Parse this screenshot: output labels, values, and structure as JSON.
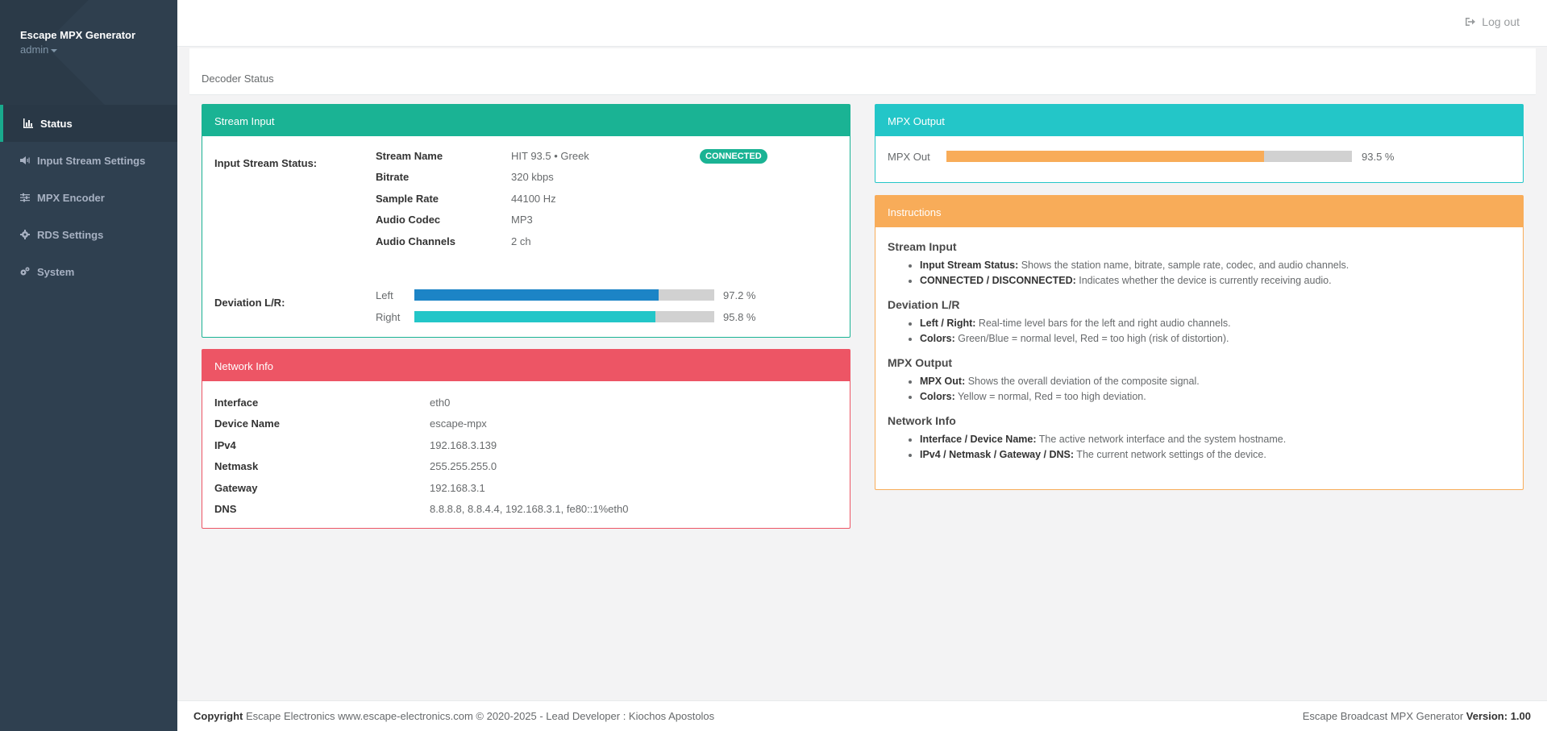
{
  "sidebar": {
    "app_name": "Escape MPX Generator",
    "user": "admin",
    "items": [
      {
        "label": "Status",
        "icon": "bar-chart-icon",
        "active": true
      },
      {
        "label": "Input Stream Settings",
        "icon": "volume-icon"
      },
      {
        "label": "MPX Encoder",
        "icon": "sliders-icon"
      },
      {
        "label": "RDS Settings",
        "icon": "gear-icon"
      },
      {
        "label": "System",
        "icon": "cogs-icon"
      }
    ]
  },
  "topbar": {
    "logout": "Log out"
  },
  "heading": {
    "breadcrumb": "Decoder Status"
  },
  "stream_input": {
    "title": "Stream Input",
    "status_label": "Input Stream Status:",
    "badge": "CONNECTED",
    "fields": [
      {
        "key": "Stream Name",
        "value": "HIT 93.5 • Greek"
      },
      {
        "key": "Bitrate",
        "value": "320 kbps"
      },
      {
        "key": "Sample Rate",
        "value": "44100 Hz"
      },
      {
        "key": "Audio Codec",
        "value": "MP3"
      },
      {
        "key": "Audio Channels",
        "value": "2 ch"
      }
    ],
    "deviation_label": "Deviation L/R:",
    "left": {
      "label": "Left",
      "percent": 97.2,
      "text": "97.2 %",
      "color": "#1c84c6"
    },
    "right": {
      "label": "Right",
      "percent": 95.8,
      "text": "95.8 %",
      "color": "#23c6c8"
    }
  },
  "mpx_output": {
    "title": "MPX Output",
    "label": "MPX Out",
    "percent": 93.5,
    "text": "93.5 %",
    "color": "#f8ac59"
  },
  "network": {
    "title": "Network Info",
    "rows": [
      {
        "key": "Interface",
        "value": "eth0"
      },
      {
        "key": "Device Name",
        "value": "escape-mpx"
      },
      {
        "key": "IPv4",
        "value": "192.168.3.139"
      },
      {
        "key": "Netmask",
        "value": "255.255.255.0"
      },
      {
        "key": "Gateway",
        "value": "192.168.3.1"
      },
      {
        "key": "DNS",
        "value": "8.8.8.8, 8.8.4.4, 192.168.3.1, fe80::1%eth0"
      }
    ]
  },
  "instructions": {
    "title": "Instructions",
    "sections": [
      {
        "heading": "Stream Input",
        "items": [
          {
            "bold": "Input Stream Status:",
            "text": " Shows the station name, bitrate, sample rate, codec, and audio channels."
          },
          {
            "bold": "CONNECTED / DISCONNECTED:",
            "text": " Indicates whether the device is currently receiving audio."
          }
        ]
      },
      {
        "heading": "Deviation L/R",
        "items": [
          {
            "bold": "Left / Right:",
            "text": " Real-time level bars for the left and right audio channels."
          },
          {
            "bold": "Colors:",
            "text": " Green/Blue = normal level, Red = too high (risk of distortion)."
          }
        ]
      },
      {
        "heading": "MPX Output",
        "items": [
          {
            "bold": "MPX Out:",
            "text": " Shows the overall deviation of the composite signal."
          },
          {
            "bold": "Colors:",
            "text": " Yellow = normal, Red = too high deviation."
          }
        ]
      },
      {
        "heading": "Network Info",
        "items": [
          {
            "bold": "Interface / Device Name:",
            "text": " The active network interface and the system hostname."
          },
          {
            "bold": "IPv4 / Netmask / Gateway / DNS:",
            "text": " The current network settings of the device."
          }
        ]
      }
    ]
  },
  "footer": {
    "copyright_bold": "Copyright",
    "copyright_text": " Escape Electronics www.escape-electronics.com © 2020-2025 - Lead Developer : Kiochos Apostolos",
    "product": "Escape Broadcast MPX Generator ",
    "version_bold": "Version: 1.00"
  }
}
